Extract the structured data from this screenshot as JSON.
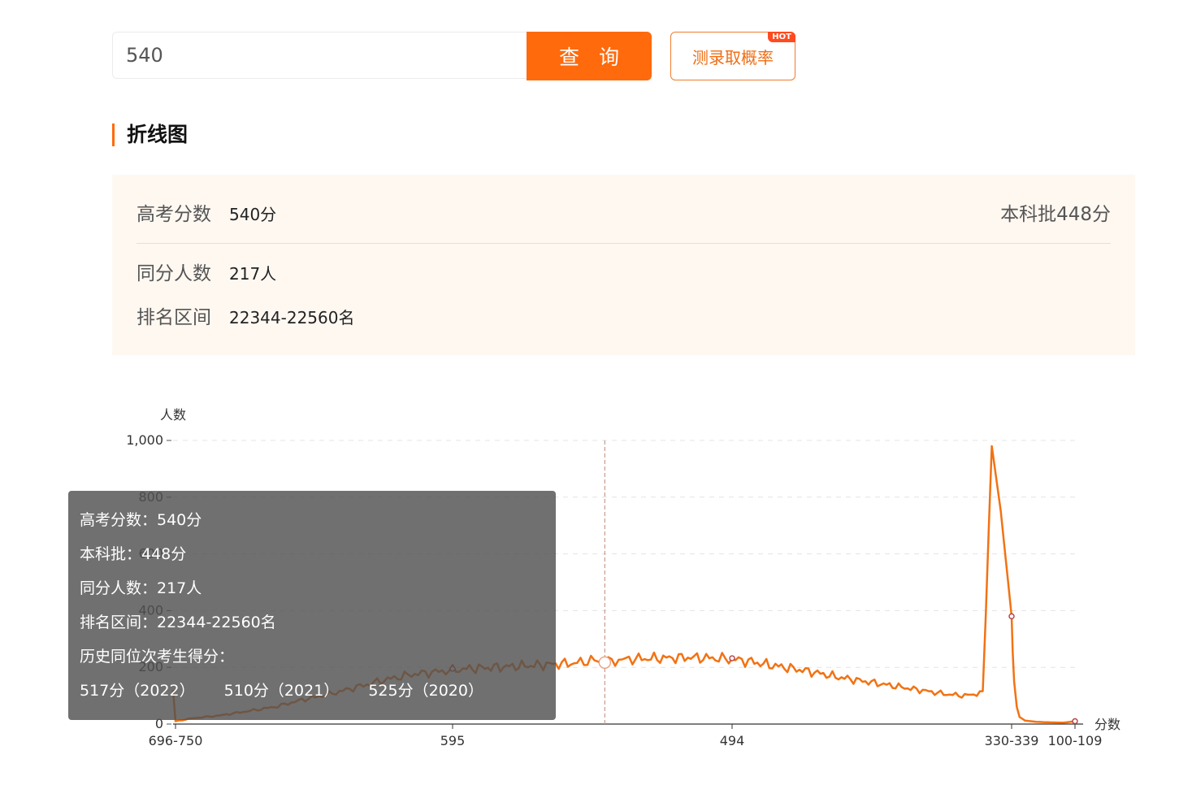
{
  "search": {
    "value": "540",
    "button_label": "查 询",
    "probability_label": "测录取概率",
    "hot_badge": "HOT"
  },
  "section": {
    "title": "折线图"
  },
  "info": {
    "score_label": "高考分数",
    "score_value": "540分",
    "batch_line": "本科批448分",
    "same_count_label": "同分人数",
    "same_count_value": "217人",
    "rank_label": "排名区间",
    "rank_value": "22344-22560名"
  },
  "tooltip": {
    "score": "高考分数：540分",
    "batch": "本科批：448分",
    "same_count": "同分人数：217人",
    "rank": "排名区间：22344-22560名",
    "history_title": "历史同位次考生得分：",
    "history": [
      "517分（2022）",
      "510分（2021）",
      "525分（2020）"
    ]
  },
  "colors": {
    "accent": "#ff6a0c",
    "line": "#f27213",
    "tooltip_bg": "#505050"
  },
  "chart_data": {
    "type": "line",
    "ylabel": "人数",
    "xlabel": "分数",
    "ylim": [
      0,
      1000
    ],
    "yticks": [
      "0",
      "200",
      "400",
      "600",
      "800",
      "1,000"
    ],
    "grid": true,
    "x_tick_labels": [
      "696-750",
      "595",
      "494",
      "330-339",
      "100-109"
    ],
    "highlight": {
      "score": 540,
      "value": 217
    },
    "series": [
      {
        "points": [
          [
            750,
            120
          ],
          [
            696,
            10
          ],
          [
            690,
            20
          ],
          [
            680,
            30
          ],
          [
            670,
            45
          ],
          [
            660,
            60
          ],
          [
            650,
            85
          ],
          [
            640,
            105
          ],
          [
            630,
            130
          ],
          [
            620,
            155
          ],
          [
            610,
            175
          ],
          [
            600,
            185
          ],
          [
            595,
            190
          ],
          [
            590,
            195
          ],
          [
            580,
            200
          ],
          [
            570,
            205
          ],
          [
            560,
            210
          ],
          [
            550,
            215
          ],
          [
            545,
            225
          ],
          [
            540,
            217
          ],
          [
            535,
            225
          ],
          [
            530,
            230
          ],
          [
            520,
            232
          ],
          [
            510,
            235
          ],
          [
            500,
            232
          ],
          [
            494,
            228
          ],
          [
            485,
            222
          ],
          [
            475,
            210
          ],
          [
            465,
            200
          ],
          [
            455,
            190
          ],
          [
            445,
            178
          ],
          [
            435,
            165
          ],
          [
            425,
            155
          ],
          [
            415,
            145
          ],
          [
            405,
            135
          ],
          [
            395,
            125
          ],
          [
            385,
            115
          ],
          [
            375,
            105
          ],
          [
            365,
            100
          ],
          [
            355,
            110
          ],
          [
            350,
            980
          ],
          [
            345,
            750
          ],
          [
            339,
            380
          ],
          [
            335,
            250
          ],
          [
            330,
            150
          ],
          [
            320,
            60
          ],
          [
            310,
            25
          ],
          [
            290,
            12
          ],
          [
            250,
            8
          ],
          [
            200,
            6
          ],
          [
            150,
            5
          ],
          [
            109,
            10
          ]
        ]
      }
    ]
  }
}
